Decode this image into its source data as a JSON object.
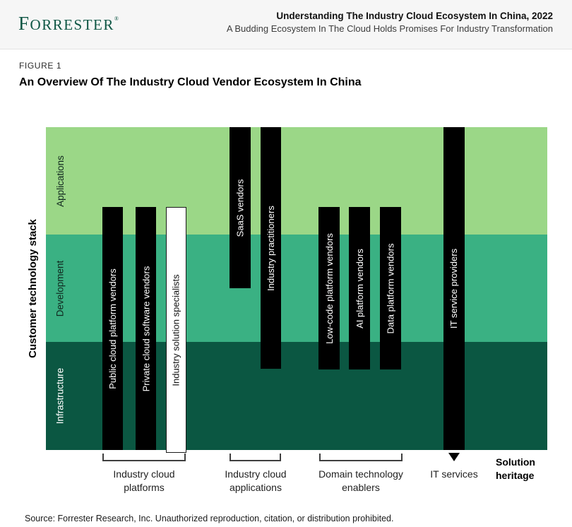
{
  "header": {
    "logo": {
      "initial": "F",
      "rest": "ORRESTER",
      "trademark": "®"
    },
    "title": "Understanding The Industry Cloud Ecosystem In China, 2022",
    "subtitle": "A Budding Ecosystem In The Cloud Holds Promises For Industry Transformation"
  },
  "figure": {
    "label": "FIGURE 1",
    "title": "An Overview Of The Industry Cloud Vendor Ecosystem In China"
  },
  "chart": {
    "type": "stacked-band ecosystem diagram",
    "y_axis_label": "Customer technology stack",
    "bands": [
      {
        "label": "Applications",
        "color": "#9BD787",
        "text_color": "#10271e"
      },
      {
        "label": "Development",
        "color": "#3AB183",
        "text_color": "#10271e"
      },
      {
        "label": "Infrastructure",
        "color": "#0B5742",
        "text_color": "#ffffff"
      }
    ],
    "vendors": [
      {
        "label": "Public cloud platform vendors",
        "group": "Industry cloud platforms",
        "style": "solid",
        "spans": "lower Applications to bottom of Infrastructure"
      },
      {
        "label": "Private cloud software vendors",
        "group": "Industry cloud platforms",
        "style": "solid",
        "spans": "lower Applications to bottom of Infrastructure"
      },
      {
        "label": "Industry solution specialists",
        "group": "Industry cloud platforms",
        "style": "outline",
        "spans": "lower Applications to just below Infrastructure"
      },
      {
        "label": "SaaS vendors",
        "group": "Industry cloud applications",
        "style": "solid",
        "spans": "top of Applications to upper Development"
      },
      {
        "label": "Industry practitioners",
        "group": "Industry cloud applications",
        "style": "solid",
        "spans": "top of Applications to upper Infrastructure"
      },
      {
        "label": "Low-code platform vendors",
        "group": "Domain technology enablers",
        "style": "solid",
        "spans": "lower Applications to upper Infrastructure"
      },
      {
        "label": "AI platform vendors",
        "group": "Domain technology enablers",
        "style": "solid",
        "spans": "lower Applications to upper Infrastructure"
      },
      {
        "label": "Data platform vendors",
        "group": "Domain technology enablers",
        "style": "solid",
        "spans": "lower Applications to upper Infrastructure"
      },
      {
        "label": "IT service providers",
        "group": "IT services",
        "style": "solid-arrow",
        "spans": "top of Applications through Infrastructure, arrow continuing below"
      }
    ],
    "groups": [
      {
        "lines": [
          "Industry cloud",
          "platforms"
        ]
      },
      {
        "lines": [
          "Industry cloud",
          "applications"
        ]
      },
      {
        "lines": [
          "Domain technology",
          "enablers"
        ]
      },
      {
        "lines": [
          "IT services"
        ]
      }
    ],
    "heritage": {
      "line1": "Solution",
      "line2": "heritage"
    },
    "colors": {
      "band_applications": "#9BD787",
      "band_development": "#3AB183",
      "band_infrastructure": "#0B5742",
      "bar_fill": "#000000",
      "bar_text": "#ffffff",
      "outline_bar_fill": "#ffffff",
      "outline_bar_text": "#111111",
      "logo_green": "#0e5644",
      "header_background": "#f6f6f6",
      "bracket": "#3f3f3f"
    }
  },
  "source": "Source: Forrester Research, Inc. Unauthorized reproduction, citation, or distribution prohibited."
}
